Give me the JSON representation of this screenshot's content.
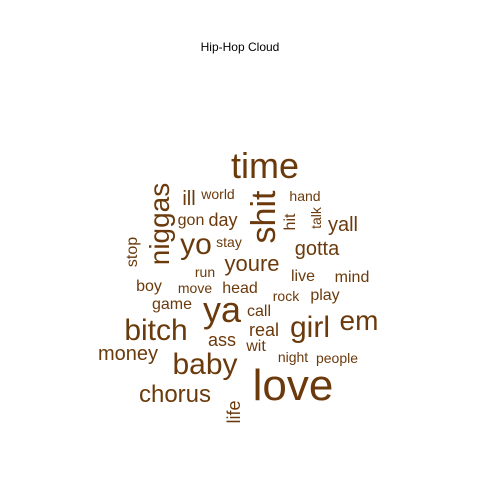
{
  "title": "Hip-Hop Cloud",
  "word_color": "#6b3a0c",
  "words": {
    "time": "time",
    "love": "love",
    "shit": "shit",
    "niggas": "niggas",
    "girl": "girl",
    "em": "em",
    "ya": "ya",
    "bitch": "bitch",
    "baby": "baby",
    "yo": "yo",
    "chorus": "chorus",
    "youre": "youre",
    "money": "money",
    "yall": "yall",
    "gotta": "gotta",
    "ill": "ill",
    "world": "world",
    "hand": "hand",
    "gon": "gon",
    "day": "day",
    "hit": "hit",
    "talk": "talk",
    "stay": "stay",
    "stop": "stop",
    "run": "run",
    "live": "live",
    "mind": "mind",
    "boy": "boy",
    "move": "move",
    "head": "head",
    "play": "play",
    "rock": "rock",
    "game": "game",
    "call": "call",
    "real": "real",
    "ass": "ass",
    "wit": "wit",
    "night": "night",
    "people": "people",
    "life": "life"
  }
}
